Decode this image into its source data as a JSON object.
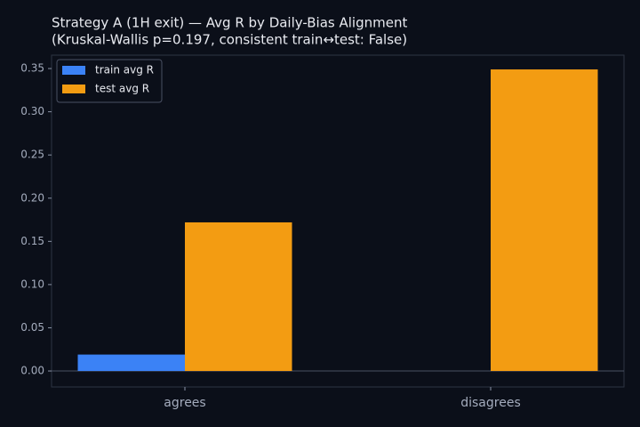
{
  "chart_data": {
    "type": "bar",
    "title": "Strategy A (1H exit) — Avg R by Daily-Bias Alignment",
    "subtitle": "(Kruskal-Wallis p=0.197, consistent train↔test: False)",
    "categories": [
      "agrees",
      "disagrees"
    ],
    "series": [
      {
        "name": "train avg R",
        "color": "#3b82f6",
        "values": [
          0.019,
          0
        ]
      },
      {
        "name": "test avg R",
        "color": "#f39c12",
        "values": [
          0.172,
          0.349
        ]
      }
    ],
    "ylim": [
      -0.0185,
      0.3655
    ],
    "yticks": [
      {
        "value": 0,
        "label": "0.00"
      },
      {
        "value": 0.05,
        "label": "0.05"
      },
      {
        "value": 0.1,
        "label": "0.10"
      },
      {
        "value": 0.15,
        "label": "0.15"
      },
      {
        "value": 0.2,
        "label": "0.20"
      },
      {
        "value": 0.25,
        "label": "0.25"
      },
      {
        "value": 0.3,
        "label": "0.30"
      },
      {
        "value": 0.35,
        "label": "0.35"
      }
    ],
    "legend": "upper left"
  }
}
